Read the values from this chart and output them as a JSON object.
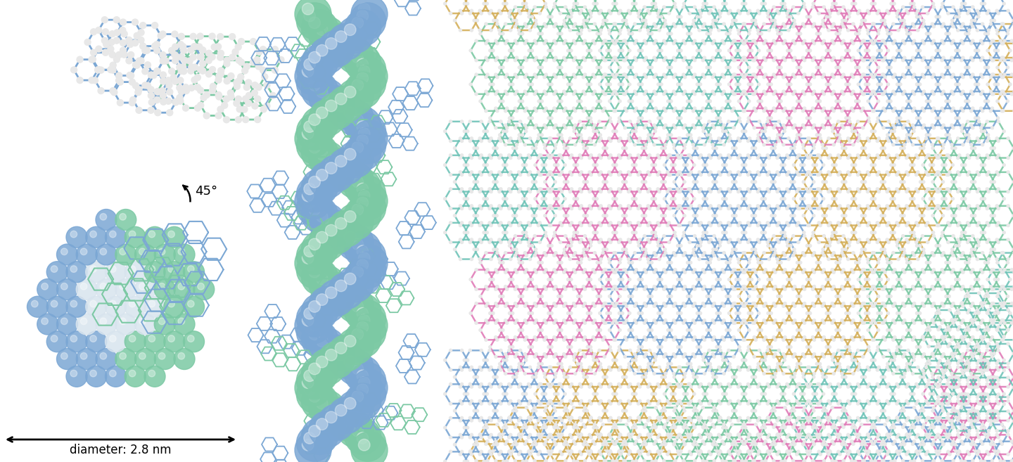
{
  "background_color": "#ffffff",
  "colors": {
    "blue": "#7BA7D4",
    "green": "#7CC9A4",
    "white_sphere": "#D8E4EE",
    "pink": "#E07CB8",
    "gold": "#D4AF5A",
    "teal": "#70C4B8",
    "atom_white": "#E8E8E8"
  },
  "annotation_45": "45°",
  "annotation_diameter": "diameter: 2.8 nm",
  "font_size_anno": 12,
  "figure_width": 14.4,
  "figure_height": 6.57,
  "dpi": 100
}
